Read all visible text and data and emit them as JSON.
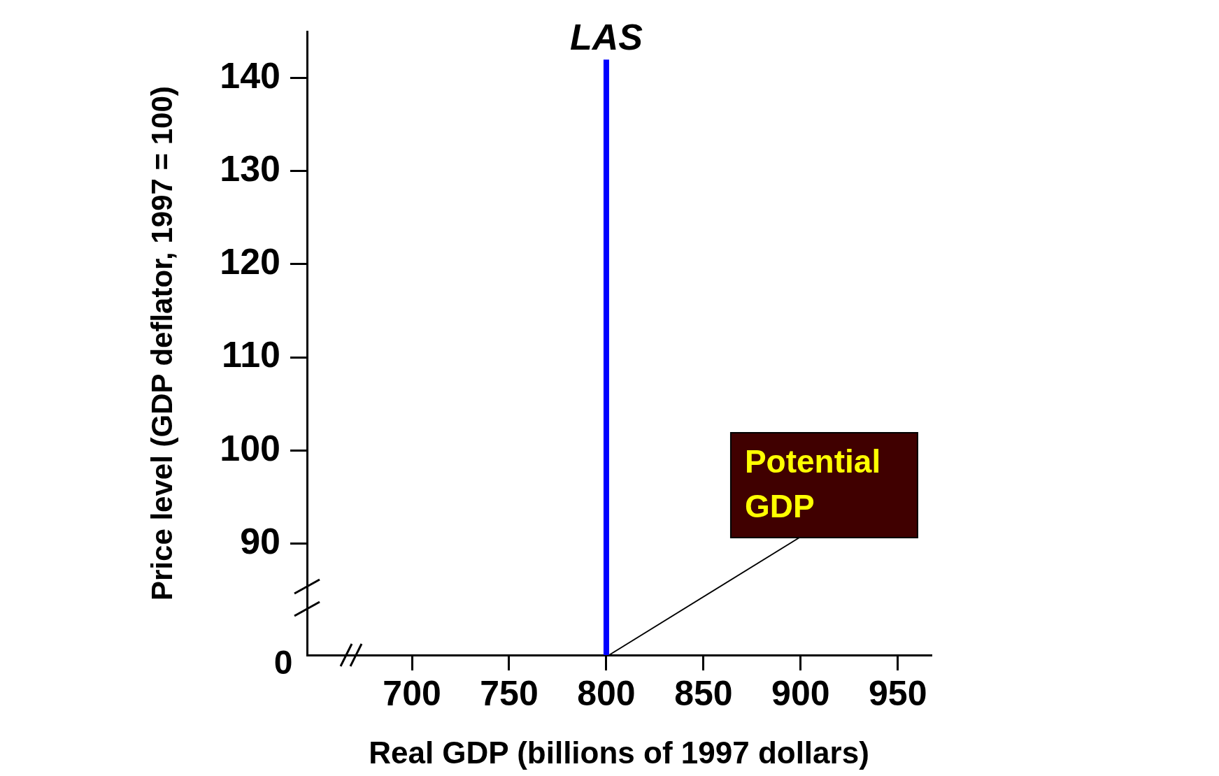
{
  "chart_data": {
    "type": "line",
    "xlabel": "Real GDP (billions of 1997 dollars)",
    "ylabel": "Price level (GDP deflator, 1997 = 100)",
    "xlim": [
      646,
      967
    ],
    "xticks": [
      700,
      750,
      800,
      850,
      900,
      950
    ],
    "ylim": [
      78,
      145
    ],
    "yticks": [
      90,
      100,
      110,
      120,
      130,
      140
    ],
    "series": [
      {
        "name": "LAS",
        "color": "#0000ff",
        "x": [
          800,
          800
        ],
        "values": [
          78,
          142
        ]
      }
    ],
    "annotations": [
      "0",
      {
        "text": "Potential GDP",
        "x": 800,
        "y": 78
      }
    ],
    "grid": false,
    "legend": false,
    "marker": "none",
    "line_style": "solid"
  }
}
